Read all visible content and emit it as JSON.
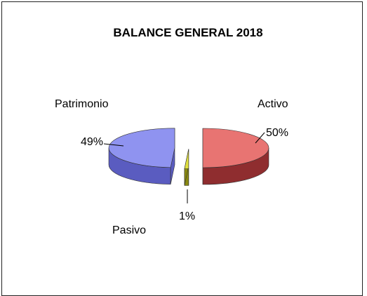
{
  "chart_data": {
    "type": "pie",
    "title": "BALANCE GENERAL 2018",
    "slices": [
      {
        "name": "Activo",
        "value": 50,
        "label": "50%",
        "color": "#e87472",
        "side_color": "#8f2d2f"
      },
      {
        "name": "Pasivo",
        "value": 1,
        "label": "1%",
        "color": "#e0e040",
        "side_color": "#8a8a10"
      },
      {
        "name": "Patrimonio",
        "value": 49,
        "label": "49%",
        "color": "#8f93f0",
        "side_color": "#5a5cc0"
      }
    ],
    "exploded": true,
    "legend": "none"
  }
}
